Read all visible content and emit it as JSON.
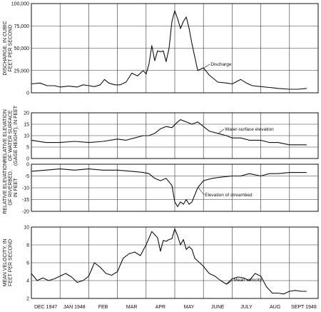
{
  "chart_data": {
    "type": "line",
    "x_months": [
      "DEC 1947",
      "JAN 1948",
      "FEB",
      "MAR",
      "APR",
      "MAY",
      "JUNE",
      "JULY",
      "AUG",
      "SEPT 1948"
    ],
    "panels": [
      {
        "id": "discharge",
        "ylabel": [
          "DISCHARGE, IN CUBIC",
          "FEET PER SECOND"
        ],
        "ylim": [
          0,
          100000
        ],
        "yticks": [
          0,
          25000,
          50000,
          75000,
          100000
        ],
        "ytick_labels": [
          "0",
          "25,000",
          "50,000",
          "75,000",
          "100,000"
        ],
        "series": [
          {
            "name": "Discharge",
            "x": [
              0.0,
              0.3,
              0.55,
              0.8,
              1.0,
              1.3,
              1.6,
              1.8,
              2.0,
              2.2,
              2.4,
              2.55,
              2.7,
              2.9,
              3.1,
              3.3,
              3.5,
              3.7,
              3.8,
              3.9,
              4.0,
              4.1,
              4.2,
              4.3,
              4.4,
              4.5,
              4.6,
              4.7,
              4.8,
              4.9,
              5.0,
              5.1,
              5.2,
              5.3,
              5.4,
              5.5,
              5.6,
              5.7,
              5.8,
              6.0,
              6.2,
              6.5,
              6.8,
              7.0,
              7.3,
              7.5,
              7.7,
              8.0,
              8.3,
              8.6,
              9.0,
              9.3,
              9.6
            ],
            "y": [
              10000,
              11000,
              8000,
              8000,
              6500,
              7500,
              6500,
              9000,
              8000,
              7000,
              9000,
              15000,
              11000,
              9000,
              9000,
              12000,
              22000,
              19000,
              22000,
              25000,
              21000,
              32000,
              53000,
              36000,
              47000,
              46000,
              47000,
              35000,
              50000,
              80000,
              92000,
              83000,
              72000,
              80000,
              85000,
              72000,
              55000,
              40000,
              25000,
              28000,
              20000,
              12000,
              11000,
              10000,
              15000,
              11000,
              8000,
              7000,
              6000,
              5000,
              4000,
              4000,
              5000
            ]
          }
        ],
        "annotation": "Discharge"
      },
      {
        "id": "water-surface",
        "ylabel": [
          "RELATIVE ELEVATION",
          "OF WATER SURFACE",
          "(GAGE HEIGHT), IN FEET"
        ],
        "ylim": [
          0,
          20
        ],
        "yticks": [
          0,
          5,
          10,
          15,
          20
        ],
        "ytick_labels": [
          "0",
          "5",
          "10",
          "15",
          "20"
        ],
        "series": [
          {
            "name": "Water-surface elevation",
            "x": [
              0.0,
              0.5,
              1.0,
              1.5,
              2.0,
              2.5,
              3.0,
              3.3,
              3.6,
              3.9,
              4.1,
              4.3,
              4.5,
              4.7,
              4.9,
              5.1,
              5.2,
              5.4,
              5.6,
              5.8,
              6.0,
              6.2,
              6.5,
              6.8,
              7.0,
              7.3,
              7.6,
              8.0,
              8.3,
              8.6,
              9.0,
              9.3,
              9.6
            ],
            "y": [
              8,
              7,
              7,
              7.5,
              7,
              7.5,
              8.5,
              8,
              9,
              10,
              10,
              11,
              13,
              14,
              13.5,
              16,
              17,
              16,
              15,
              16,
              14,
              12,
              11,
              10,
              9,
              9,
              8,
              8,
              7,
              7,
              6,
              6,
              6
            ]
          }
        ],
        "annotation": "Water-surface elevation"
      },
      {
        "id": "streambed",
        "ylabel": [
          "RELATIVE ELEVATION",
          "OF RIVERBED,",
          "IN FEET"
        ],
        "ylim": [
          -20,
          0
        ],
        "yticks": [
          -20,
          -15,
          -10,
          -5,
          0
        ],
        "ytick_labels": [
          "-20",
          "-15",
          "-10",
          "-5",
          "0"
        ],
        "series": [
          {
            "name": "Elevation of streambed",
            "x": [
              0.0,
              0.5,
              1.0,
              1.5,
              2.0,
              2.5,
              3.0,
              3.5,
              3.9,
              4.1,
              4.3,
              4.5,
              4.7,
              4.9,
              5.0,
              5.1,
              5.2,
              5.3,
              5.4,
              5.5,
              5.6,
              5.7,
              5.8,
              6.0,
              6.3,
              6.6,
              7.0,
              7.3,
              7.6,
              8.0,
              8.3,
              8.6,
              9.0,
              9.3,
              9.6
            ],
            "y": [
              -3,
              -2.5,
              -2,
              -2.5,
              -2,
              -2.5,
              -2.5,
              -3,
              -3.5,
              -4,
              -6,
              -7,
              -6,
              -9,
              -16,
              -18,
              -16,
              -17,
              -15,
              -17,
              -16,
              -13,
              -10,
              -7,
              -6,
              -5.5,
              -5,
              -5,
              -4,
              -5,
              -4,
              -4,
              -3.5,
              -3.5,
              -3.5
            ]
          }
        ],
        "annotation": "Elevation of streambed"
      },
      {
        "id": "velocity",
        "ylabel": [
          "MEAN VELOCITY, IN",
          "FEET PER SECOND"
        ],
        "ylim": [
          2,
          10
        ],
        "yticks": [
          2,
          4,
          6,
          8,
          10
        ],
        "ytick_labels": [
          "2",
          "4",
          "6",
          "8",
          "10"
        ],
        "series": [
          {
            "name": "Mean velocity",
            "x": [
              0.0,
              0.2,
              0.4,
              0.6,
              0.8,
              1.0,
              1.2,
              1.4,
              1.6,
              1.8,
              2.0,
              2.2,
              2.4,
              2.6,
              2.8,
              3.0,
              3.2,
              3.4,
              3.6,
              3.8,
              4.0,
              4.2,
              4.4,
              4.5,
              4.6,
              4.7,
              4.8,
              4.9,
              5.0,
              5.1,
              5.2,
              5.3,
              5.4,
              5.5,
              5.6,
              5.7,
              5.8,
              6.0,
              6.2,
              6.4,
              6.6,
              6.8,
              7.0,
              7.2,
              7.4,
              7.6,
              7.8,
              8.0,
              8.2,
              8.4,
              8.6,
              8.8,
              9.0,
              9.2,
              9.4,
              9.6
            ],
            "y": [
              4.8,
              4.0,
              4.3,
              4.0,
              4.2,
              4.5,
              4.8,
              4.4,
              3.8,
              4.0,
              4.5,
              6.0,
              5.5,
              4.8,
              4.6,
              5.0,
              6.5,
              7.0,
              7.2,
              6.8,
              8.0,
              9.5,
              8.8,
              7.3,
              8.5,
              8.4,
              8.6,
              8.7,
              9.8,
              9.0,
              8.0,
              8.6,
              7.5,
              7.8,
              7.5,
              6.5,
              6.2,
              5.6,
              4.8,
              4.5,
              4.0,
              3.6,
              4.2,
              4.4,
              4.3,
              4.0,
              4.8,
              4.5,
              3.3,
              2.6,
              2.6,
              2.5,
              2.8,
              2.9,
              2.8,
              2.8
            ]
          }
        ],
        "annotation": "Mean velocity"
      }
    ]
  }
}
